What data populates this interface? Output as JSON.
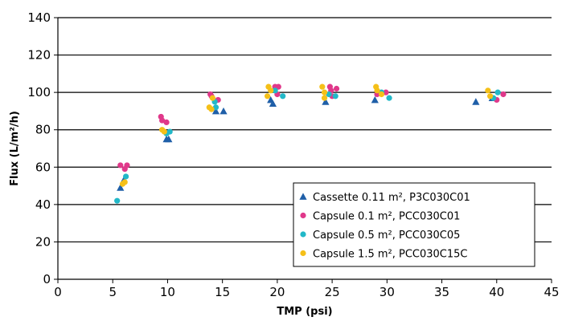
{
  "chart_data": {
    "type": "scatter",
    "xlabel": "TMP (psi)",
    "ylabel": "Flux (L/m²/h)",
    "xlim": [
      0,
      45
    ],
    "ylim": [
      0,
      140
    ],
    "x_ticks": [
      0,
      5,
      10,
      15,
      20,
      25,
      30,
      35,
      40,
      45
    ],
    "y_ticks": [
      0,
      20,
      40,
      60,
      80,
      100,
      120,
      140
    ],
    "grid": "horizontal",
    "legend_position": "bottom-right",
    "series": [
      {
        "name": "Cassette 0.11 m², P3C030C01",
        "marker": "triangle",
        "color": "#1f5fa8",
        "points": [
          [
            5.7,
            49
          ],
          [
            6.0,
            53
          ],
          [
            9.9,
            75
          ],
          [
            10.1,
            75
          ],
          [
            14.4,
            90
          ],
          [
            15.1,
            90
          ],
          [
            19.4,
            96
          ],
          [
            19.6,
            94
          ],
          [
            24.4,
            95
          ],
          [
            28.9,
            96
          ],
          [
            38.1,
            95
          ],
          [
            39.6,
            97
          ]
        ]
      },
      {
        "name": "Capsule 0.1 m², PCC030C01",
        "marker": "circle",
        "color": "#e0388a",
        "points": [
          [
            5.7,
            61
          ],
          [
            6.1,
            59
          ],
          [
            6.3,
            61
          ],
          [
            9.4,
            87
          ],
          [
            9.5,
            85
          ],
          [
            9.9,
            84
          ],
          [
            13.9,
            99
          ],
          [
            14.0,
            98
          ],
          [
            14.6,
            96
          ],
          [
            19.8,
            103
          ],
          [
            20.1,
            103
          ],
          [
            20.0,
            99
          ],
          [
            24.8,
            103
          ],
          [
            24.9,
            101
          ],
          [
            25.4,
            102
          ],
          [
            25.0,
            98
          ],
          [
            29.1,
            99
          ],
          [
            29.9,
            100
          ],
          [
            40.0,
            96
          ],
          [
            40.6,
            99
          ]
        ]
      },
      {
        "name": "Capsule 0.5 m², PCC030C05",
        "marker": "circle",
        "color": "#22b8c8",
        "points": [
          [
            5.4,
            42
          ],
          [
            6.2,
            55
          ],
          [
            10.2,
            79
          ],
          [
            9.9,
            78
          ],
          [
            14.3,
            95
          ],
          [
            14.4,
            92
          ],
          [
            19.8,
            101
          ],
          [
            20.5,
            98
          ],
          [
            24.7,
            99
          ],
          [
            25.3,
            98
          ],
          [
            29.5,
            100
          ],
          [
            30.2,
            97
          ],
          [
            39.7,
            97
          ],
          [
            40.1,
            100
          ]
        ]
      },
      {
        "name": "Capsule 1.5 m², PCC030C15C",
        "marker": "circle",
        "color": "#f5c018",
        "points": [
          [
            5.9,
            51
          ],
          [
            6.1,
            52
          ],
          [
            9.5,
            80
          ],
          [
            9.7,
            79
          ],
          [
            13.8,
            92
          ],
          [
            14.0,
            91
          ],
          [
            14.1,
            97
          ],
          [
            19.2,
            103
          ],
          [
            19.4,
            101
          ],
          [
            19.1,
            98
          ],
          [
            24.1,
            103
          ],
          [
            24.3,
            100
          ],
          [
            24.3,
            97
          ],
          [
            29.0,
            103
          ],
          [
            29.1,
            101
          ],
          [
            29.5,
            99
          ],
          [
            39.2,
            101
          ],
          [
            39.4,
            98
          ]
        ]
      }
    ]
  }
}
